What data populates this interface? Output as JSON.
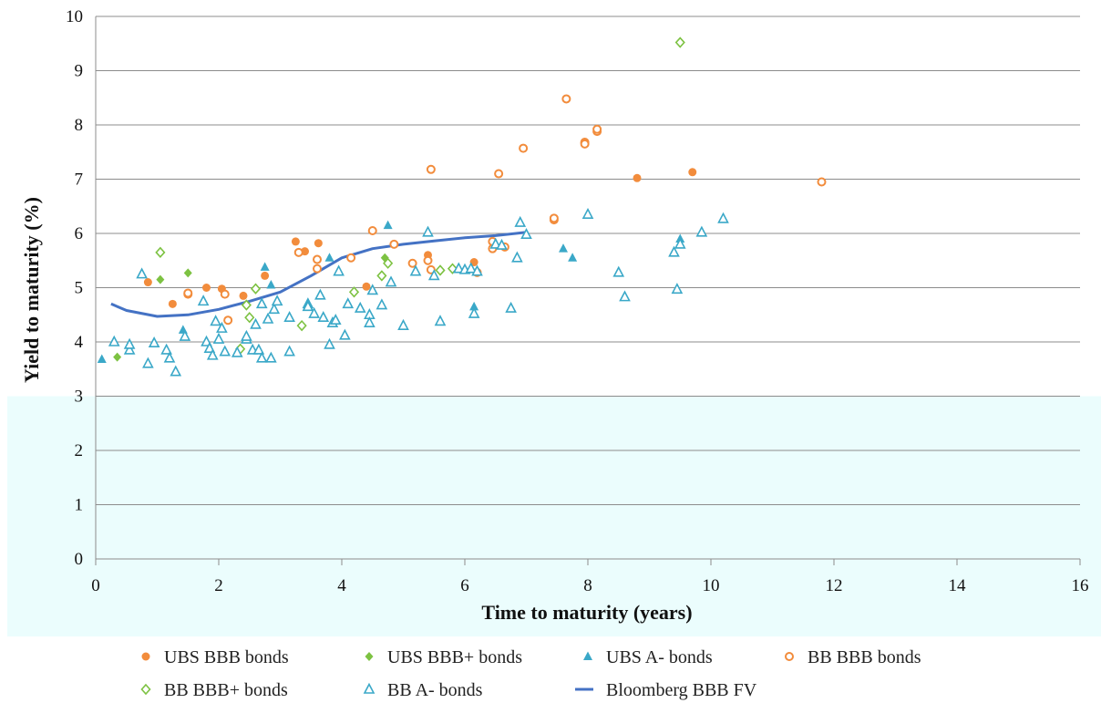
{
  "chart_data": {
    "type": "scatter",
    "xlabel": "Time to maturity (years)",
    "ylabel": "Yield to maturity (%)",
    "xlim": [
      0,
      16
    ],
    "ylim": [
      0,
      10
    ],
    "x_ticks": [
      "0",
      "2",
      "4",
      "6",
      "8",
      "10",
      "12",
      "14",
      "16"
    ],
    "y_ticks": [
      "0",
      "1",
      "2",
      "3",
      "4",
      "5",
      "6",
      "7",
      "8",
      "9",
      "10"
    ],
    "grid": "horizontal",
    "legend_position": "bottom",
    "shaded_band": {
      "y_range": [
        0,
        3
      ],
      "color": "#ebfdfd"
    },
    "series": [
      {
        "name": "UBS BBB bonds",
        "marker": "filled-circle",
        "color": "#f28c3c",
        "points": [
          [
            0.85,
            5.1
          ],
          [
            1.25,
            4.7
          ],
          [
            1.8,
            5.0
          ],
          [
            2.05,
            4.98
          ],
          [
            2.4,
            4.85
          ],
          [
            2.75,
            5.22
          ],
          [
            3.25,
            5.85
          ],
          [
            3.4,
            5.67
          ],
          [
            3.62,
            5.82
          ],
          [
            4.4,
            5.02
          ],
          [
            5.4,
            5.6
          ],
          [
            6.15,
            5.47
          ],
          [
            8.8,
            7.02
          ],
          [
            9.7,
            7.13
          ]
        ]
      },
      {
        "name": "UBS BBB+ bonds",
        "marker": "filled-diamond",
        "color": "#7dc242",
        "points": [
          [
            0.35,
            3.72
          ],
          [
            1.05,
            5.15
          ],
          [
            1.5,
            5.27
          ],
          [
            4.7,
            5.55
          ]
        ]
      },
      {
        "name": "UBS A- bonds",
        "marker": "filled-triangle",
        "color": "#3aa8c8",
        "points": [
          [
            0.1,
            3.68
          ],
          [
            1.42,
            4.22
          ],
          [
            2.75,
            5.38
          ],
          [
            2.85,
            5.05
          ],
          [
            3.8,
            5.55
          ],
          [
            4.75,
            6.15
          ],
          [
            6.15,
            4.65
          ],
          [
            7.6,
            5.72
          ],
          [
            7.75,
            5.55
          ],
          [
            9.5,
            5.9
          ]
        ]
      },
      {
        "name": "BB BBB bonds",
        "marker": "hollow-circle",
        "color": "#f28c3c",
        "points": [
          [
            1.5,
            4.88
          ],
          [
            1.5,
            4.9
          ],
          [
            2.1,
            4.88
          ],
          [
            2.15,
            4.4
          ],
          [
            3.3,
            5.65
          ],
          [
            3.6,
            5.52
          ],
          [
            3.6,
            5.35
          ],
          [
            4.15,
            5.55
          ],
          [
            4.5,
            6.05
          ],
          [
            4.85,
            5.8
          ],
          [
            5.15,
            5.45
          ],
          [
            5.4,
            5.5
          ],
          [
            5.45,
            7.18
          ],
          [
            5.45,
            5.33
          ],
          [
            6.2,
            5.28
          ],
          [
            6.45,
            5.72
          ],
          [
            6.45,
            5.85
          ],
          [
            6.55,
            7.1
          ],
          [
            6.65,
            5.75
          ],
          [
            6.95,
            7.57
          ],
          [
            7.45,
            6.25
          ],
          [
            7.45,
            6.28
          ],
          [
            7.65,
            8.48
          ],
          [
            7.95,
            7.68
          ],
          [
            7.95,
            7.65
          ],
          [
            8.15,
            7.88
          ],
          [
            8.15,
            7.92
          ],
          [
            11.8,
            6.95
          ]
        ]
      },
      {
        "name": "BB BBB+ bonds",
        "marker": "hollow-diamond",
        "color": "#7dc242",
        "points": [
          [
            1.05,
            5.65
          ],
          [
            2.35,
            3.87
          ],
          [
            2.45,
            4.68
          ],
          [
            2.5,
            4.45
          ],
          [
            2.6,
            4.98
          ],
          [
            3.35,
            4.3
          ],
          [
            4.2,
            4.92
          ],
          [
            4.65,
            5.22
          ],
          [
            4.75,
            5.45
          ],
          [
            5.6,
            5.32
          ],
          [
            5.8,
            5.35
          ],
          [
            9.5,
            9.52
          ]
        ]
      },
      {
        "name": "BB A- bonds",
        "marker": "hollow-triangle",
        "color": "#3aa8c8",
        "points": [
          [
            0.3,
            4.0
          ],
          [
            0.55,
            3.85
          ],
          [
            0.55,
            3.95
          ],
          [
            0.75,
            5.25
          ],
          [
            0.85,
            3.6
          ],
          [
            0.95,
            3.98
          ],
          [
            1.15,
            3.85
          ],
          [
            1.2,
            3.7
          ],
          [
            1.3,
            3.45
          ],
          [
            1.45,
            4.1
          ],
          [
            1.75,
            4.75
          ],
          [
            1.8,
            4.0
          ],
          [
            1.85,
            3.88
          ],
          [
            1.9,
            3.75
          ],
          [
            1.95,
            4.38
          ],
          [
            2.0,
            4.05
          ],
          [
            2.05,
            4.25
          ],
          [
            2.1,
            3.82
          ],
          [
            2.3,
            3.8
          ],
          [
            2.45,
            4.05
          ],
          [
            2.45,
            4.1
          ],
          [
            2.55,
            3.85
          ],
          [
            2.6,
            4.32
          ],
          [
            2.65,
            3.85
          ],
          [
            2.7,
            3.7
          ],
          [
            2.7,
            4.7
          ],
          [
            2.8,
            4.42
          ],
          [
            2.85,
            3.7
          ],
          [
            2.9,
            4.6
          ],
          [
            2.95,
            4.75
          ],
          [
            3.15,
            4.45
          ],
          [
            3.15,
            3.82
          ],
          [
            3.45,
            4.7
          ],
          [
            3.45,
            4.65
          ],
          [
            3.55,
            4.52
          ],
          [
            3.65,
            4.86
          ],
          [
            3.7,
            4.45
          ],
          [
            3.8,
            3.95
          ],
          [
            3.85,
            4.35
          ],
          [
            3.9,
            4.4
          ],
          [
            3.95,
            5.3
          ],
          [
            4.05,
            4.12
          ],
          [
            4.1,
            4.7
          ],
          [
            4.3,
            4.62
          ],
          [
            4.45,
            4.5
          ],
          [
            4.45,
            4.35
          ],
          [
            4.5,
            4.95
          ],
          [
            4.65,
            4.68
          ],
          [
            4.8,
            5.1
          ],
          [
            5.0,
            4.3
          ],
          [
            5.2,
            5.3
          ],
          [
            5.4,
            6.02
          ],
          [
            5.5,
            5.22
          ],
          [
            5.6,
            4.38
          ],
          [
            5.9,
            5.35
          ],
          [
            6.0,
            5.33
          ],
          [
            6.1,
            5.35
          ],
          [
            6.15,
            4.52
          ],
          [
            6.2,
            5.3
          ],
          [
            6.5,
            5.8
          ],
          [
            6.6,
            5.78
          ],
          [
            6.75,
            4.62
          ],
          [
            6.85,
            5.55
          ],
          [
            6.9,
            6.2
          ],
          [
            7.0,
            5.98
          ],
          [
            8.0,
            6.35
          ],
          [
            8.5,
            5.28
          ],
          [
            8.6,
            4.83
          ],
          [
            9.4,
            5.65
          ],
          [
            9.45,
            4.97
          ],
          [
            9.5,
            5.8
          ],
          [
            9.85,
            6.02
          ],
          [
            10.2,
            6.27
          ]
        ]
      },
      {
        "name": "Bloomberg BBB FV",
        "marker": "line",
        "color": "#4472c4",
        "points": [
          [
            0.25,
            4.7
          ],
          [
            0.5,
            4.58
          ],
          [
            1.0,
            4.47
          ],
          [
            1.5,
            4.5
          ],
          [
            2.0,
            4.6
          ],
          [
            2.5,
            4.75
          ],
          [
            3.0,
            4.92
          ],
          [
            3.5,
            5.22
          ],
          [
            4.0,
            5.55
          ],
          [
            4.5,
            5.72
          ],
          [
            5.0,
            5.8
          ],
          [
            5.5,
            5.86
          ],
          [
            6.0,
            5.92
          ],
          [
            6.5,
            5.96
          ],
          [
            7.0,
            6.02
          ]
        ]
      }
    ]
  }
}
